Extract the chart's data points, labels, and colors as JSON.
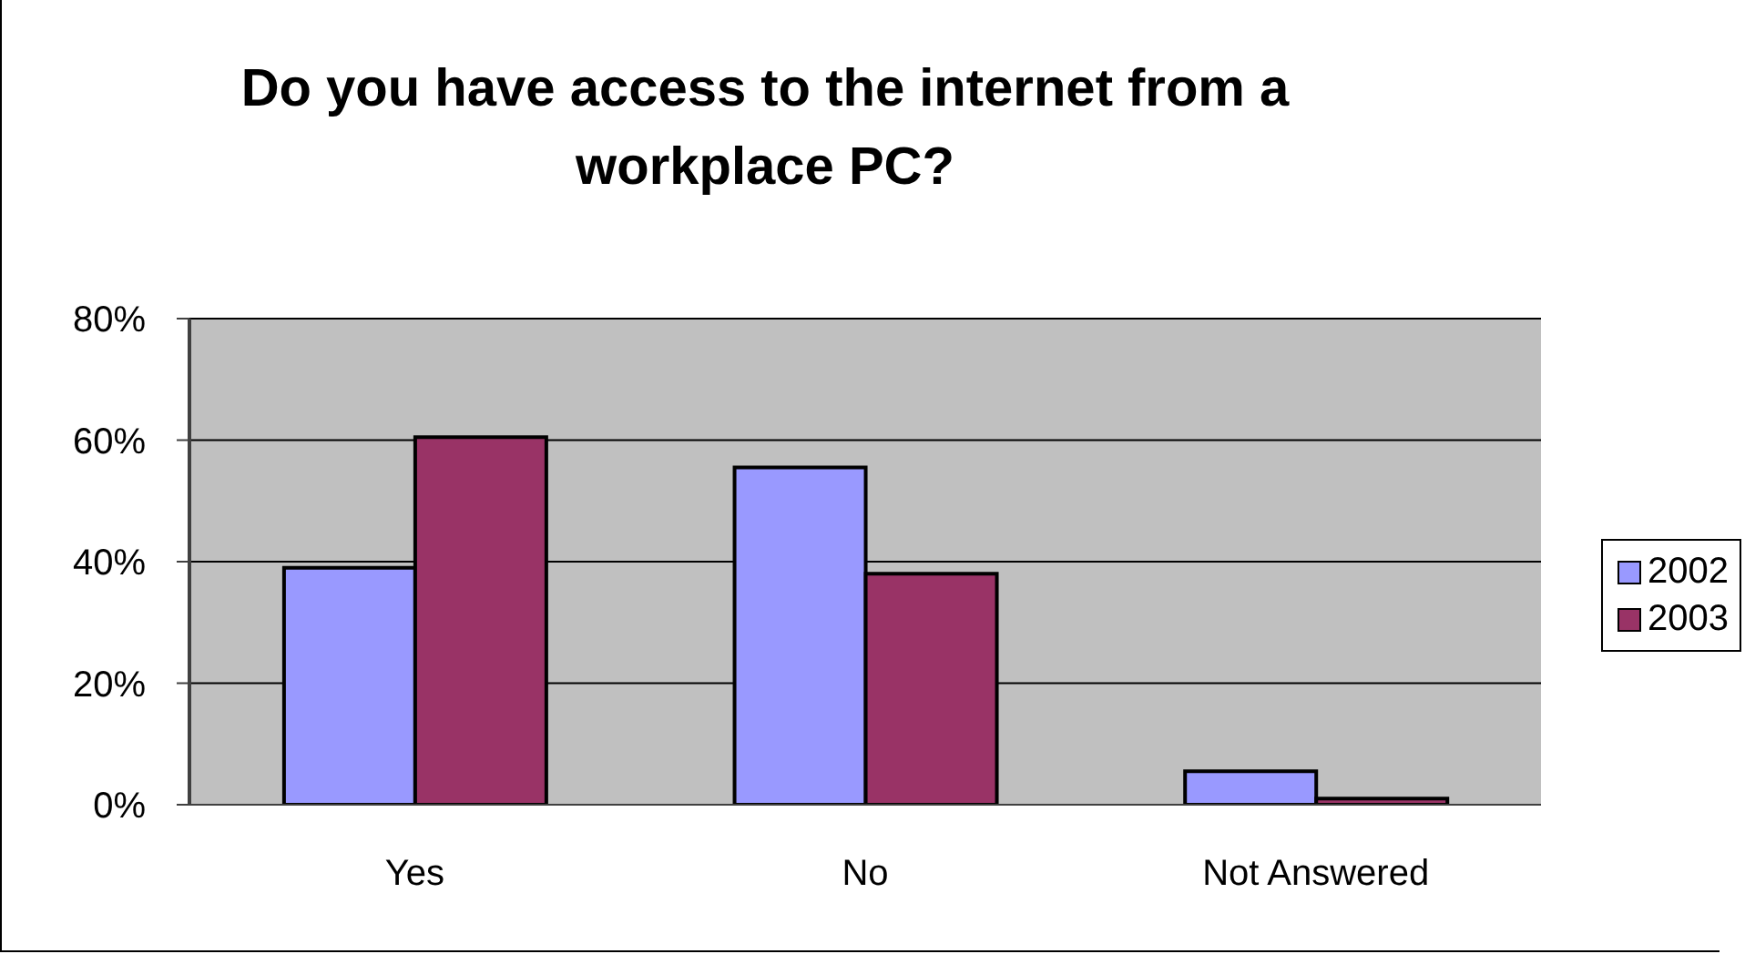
{
  "chart_data": {
    "type": "bar",
    "title": "Do you have access to the internet from a workplace PC?",
    "categories": [
      "Yes",
      "No",
      "Not Answered"
    ],
    "series": [
      {
        "name": "2002",
        "color": "#9999ff",
        "values": [
          39,
          55.5,
          5.5
        ]
      },
      {
        "name": "2003",
        "color": "#993366",
        "values": [
          60.5,
          38,
          1
        ]
      }
    ],
    "ylim": [
      0,
      80
    ],
    "yticks": [
      {
        "value": 0,
        "label": "0%"
      },
      {
        "value": 20,
        "label": "20%"
      },
      {
        "value": 40,
        "label": "40%"
      },
      {
        "value": 60,
        "label": "60%"
      },
      {
        "value": 80,
        "label": "80%"
      }
    ],
    "grid": "y",
    "legend": "right"
  }
}
